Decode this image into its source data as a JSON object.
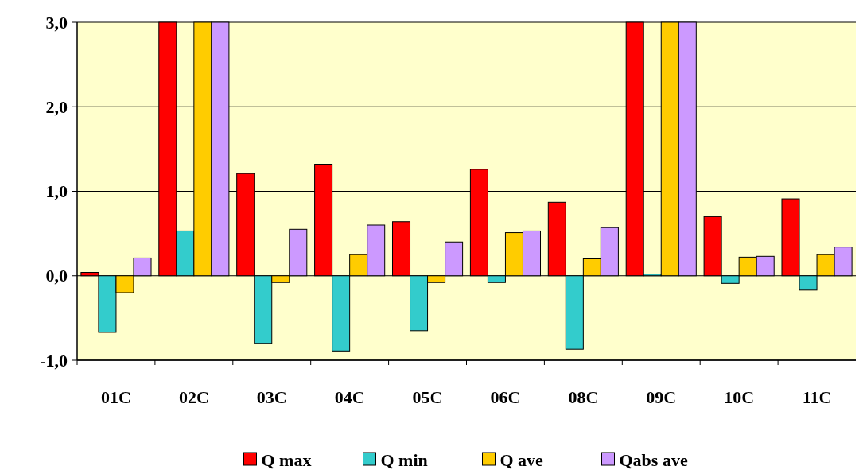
{
  "chart_data": {
    "type": "bar",
    "categories": [
      "01C",
      "02C",
      "03C",
      "04C",
      "05C",
      "06C",
      "08C",
      "09C",
      "10C",
      "11C"
    ],
    "series": [
      {
        "name": "Q max",
        "color": "#ff0000",
        "values": [
          0.04,
          3.0,
          1.21,
          1.32,
          0.64,
          1.26,
          0.87,
          3.0,
          0.7,
          0.91
        ]
      },
      {
        "name": "Q min",
        "color": "#33cccc",
        "values": [
          -0.67,
          0.53,
          -0.8,
          -0.89,
          -0.65,
          -0.08,
          -0.87,
          0.02,
          -0.09,
          -0.17
        ]
      },
      {
        "name": "Q ave",
        "color": "#ffcc00",
        "values": [
          -0.2,
          3.0,
          -0.08,
          0.25,
          -0.08,
          0.51,
          0.2,
          3.0,
          0.22,
          0.25
        ]
      },
      {
        "name": "Qabs ave",
        "color": "#cc99ff",
        "values": [
          0.21,
          3.0,
          0.55,
          0.6,
          0.4,
          0.53,
          0.57,
          3.0,
          0.23,
          0.34
        ]
      }
    ],
    "ylim": [
      -1,
      3
    ],
    "yticks": [
      {
        "value": -1,
        "label": "-1,0"
      },
      {
        "value": 0,
        "label": "0,0"
      },
      {
        "value": 1,
        "label": "1,0"
      },
      {
        "value": 2,
        "label": "2,0"
      },
      {
        "value": 3,
        "label": "3,0"
      }
    ],
    "grid": "y",
    "legend": "bottom"
  }
}
